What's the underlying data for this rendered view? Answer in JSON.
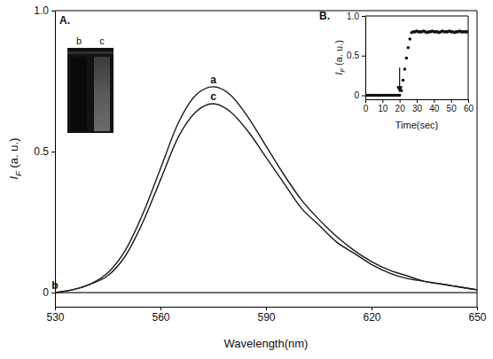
{
  "chart_data": [
    {
      "type": "line",
      "title": "A.",
      "x_label": "Wavelength(nm)",
      "y_label": "IF (a. u.)",
      "x": [
        530,
        535,
        540,
        545,
        550,
        555,
        560,
        565,
        570,
        575,
        580,
        585,
        590,
        595,
        600,
        605,
        610,
        615,
        620,
        625,
        630,
        635,
        640,
        645,
        650
      ],
      "series": [
        {
          "name": "a",
          "color": "#1a1a1a",
          "values": [
            0,
            0.01,
            0.03,
            0.07,
            0.15,
            0.28,
            0.44,
            0.6,
            0.7,
            0.73,
            0.7,
            0.62,
            0.52,
            0.42,
            0.33,
            0.26,
            0.2,
            0.15,
            0.11,
            0.08,
            0.06,
            0.04,
            0.03,
            0.02,
            0.01
          ]
        },
        {
          "name": "b",
          "color": "#1a1a1a",
          "values": [
            0,
            0,
            0,
            0,
            0,
            0,
            0,
            0,
            0,
            0,
            0,
            0,
            0,
            0,
            0,
            0,
            0,
            0,
            0,
            0,
            0,
            0,
            0,
            0,
            0
          ]
        },
        {
          "name": "c",
          "color": "#1a1a1a",
          "values": [
            0,
            0.01,
            0.03,
            0.06,
            0.13,
            0.25,
            0.4,
            0.55,
            0.64,
            0.67,
            0.64,
            0.57,
            0.48,
            0.39,
            0.3,
            0.24,
            0.18,
            0.14,
            0.1,
            0.07,
            0.05,
            0.04,
            0.03,
            0.02,
            0.01
          ]
        }
      ],
      "xlim": [
        530,
        650
      ],
      "xticks": [
        530,
        560,
        590,
        620,
        650
      ],
      "ylim": [
        -0.05,
        1
      ],
      "yticks": [
        0,
        0.5,
        {
          "value": 1,
          "label": "1.0"
        }
      ],
      "grid": false,
      "gel_image": {
        "lane_labels": [
          "b",
          "c"
        ]
      }
    },
    {
      "type": "scatter",
      "title": "B.",
      "x_label": "Time(sec)",
      "y_label": "IF (a. u.)",
      "marker": "circle",
      "color": "#111111",
      "x": [
        0,
        1,
        2,
        3,
        4,
        5,
        6,
        7,
        8,
        9,
        10,
        11,
        12,
        13,
        14,
        15,
        16,
        17,
        18,
        19,
        20,
        21,
        22,
        23,
        24,
        25,
        26,
        27,
        28,
        29,
        30,
        31,
        32,
        33,
        34,
        35,
        36,
        37,
        38,
        39,
        40,
        41,
        42,
        43,
        44,
        45,
        46,
        47,
        48,
        49,
        50,
        51,
        52,
        53,
        54,
        55,
        56,
        57,
        58,
        59,
        60
      ],
      "values": [
        0,
        0,
        0,
        0,
        0,
        0,
        0,
        0,
        0,
        0,
        0,
        0,
        0,
        0,
        0,
        0,
        0,
        0,
        0,
        0,
        0,
        0.06,
        0.19,
        0.33,
        0.47,
        0.6,
        0.71,
        0.79,
        0.8,
        0.8,
        0.81,
        0.8,
        0.8,
        0.8,
        0.81,
        0.8,
        0.79,
        0.8,
        0.8,
        0.81,
        0.8,
        0.8,
        0.8,
        0.79,
        0.8,
        0.81,
        0.8,
        0.8,
        0.8,
        0.81,
        0.8,
        0.8,
        0.79,
        0.8,
        0.8,
        0.81,
        0.8,
        0.8,
        0.8,
        0.8,
        0.8
      ],
      "xlim": [
        0,
        60
      ],
      "xticks": [
        0,
        10,
        20,
        30,
        40,
        50,
        60
      ],
      "ylim": [
        -0.05,
        1
      ],
      "yticks": [
        0,
        0.5,
        {
          "value": 1,
          "label": "1.0"
        }
      ],
      "grid": false,
      "arrow": {
        "x": 20,
        "y": [
          0.35,
          0.05
        ]
      }
    }
  ]
}
